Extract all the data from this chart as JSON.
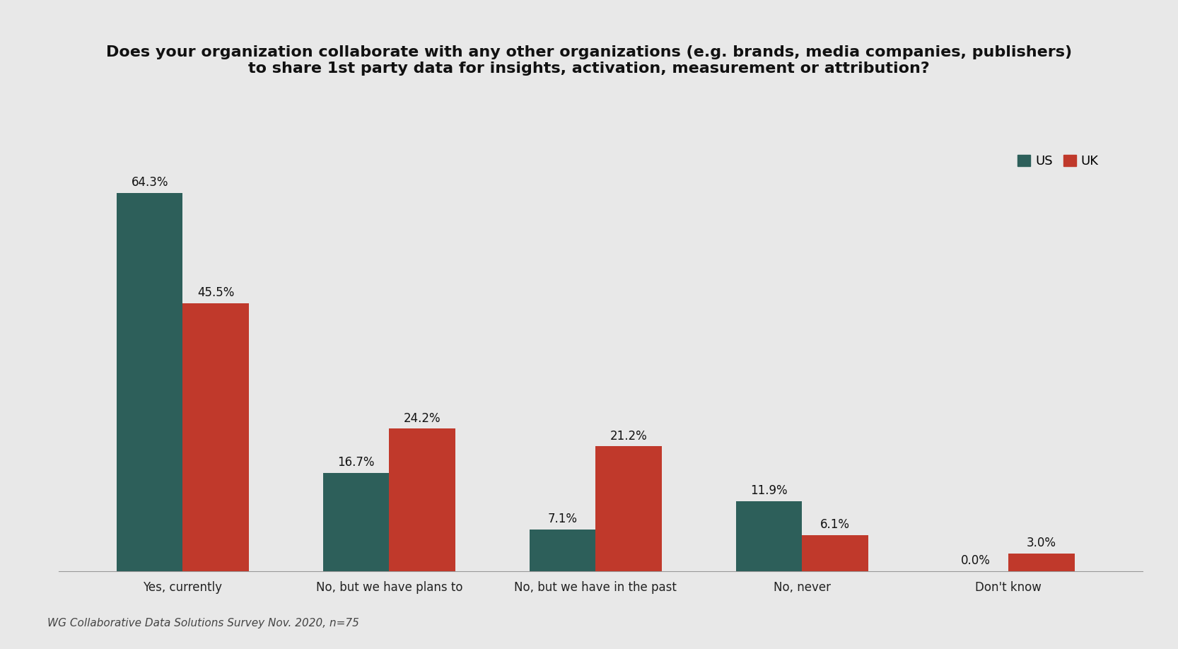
{
  "title_line1": "Does your organization collaborate with any other organizations (e.g. brands, media companies, publishers)",
  "title_line2": "to share 1st party data for insights, activation, measurement or attribution?",
  "categories": [
    "Yes, currently",
    "No, but we have plans to",
    "No, but we have in the past",
    "No, never",
    "Don't know"
  ],
  "us_values": [
    64.3,
    16.7,
    7.1,
    11.9,
    0.0
  ],
  "uk_values": [
    45.5,
    24.2,
    21.2,
    6.1,
    3.0
  ],
  "us_labels": [
    "64.3%",
    "16.7%",
    "7.1%",
    "11.9%",
    "0.0%"
  ],
  "uk_labels": [
    "45.5%",
    "24.2%",
    "21.2%",
    "6.1%",
    "3.0%"
  ],
  "us_color": "#2d5f5a",
  "uk_color": "#c0392b",
  "background_color": "#e8e8e8",
  "bar_width": 0.32,
  "ylim": [
    0,
    75
  ],
  "footnote": "WG Collaborative Data Solutions Survey Nov. 2020, n=75",
  "legend_us": "US",
  "legend_uk": "UK",
  "title_fontsize": 16,
  "label_fontsize": 12,
  "tick_fontsize": 12,
  "footnote_fontsize": 11
}
